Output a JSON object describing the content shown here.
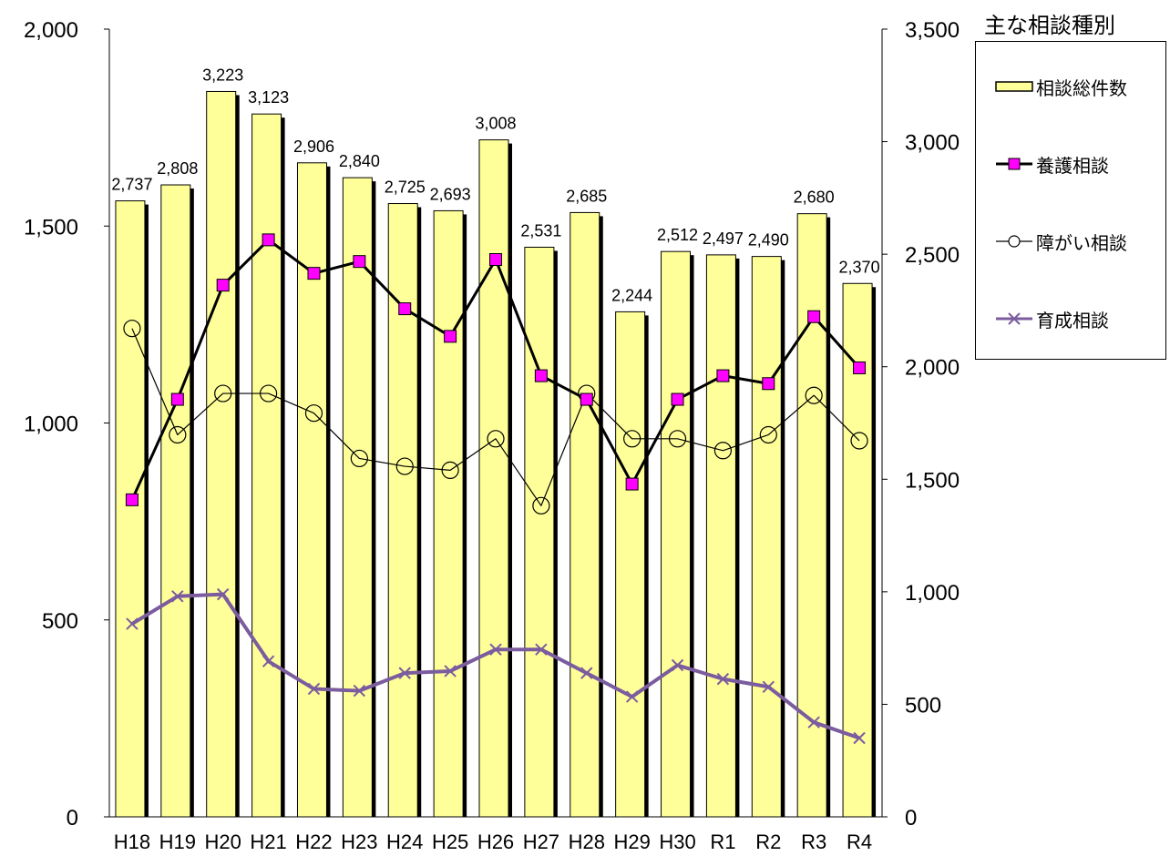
{
  "chart_data": {
    "type": "bar",
    "categories": [
      "H18",
      "H19",
      "H20",
      "H21",
      "H22",
      "H23",
      "H24",
      "H25",
      "H26",
      "H27",
      "H28",
      "H29",
      "H30",
      "R1",
      "R2",
      "R3",
      "R4"
    ],
    "left_axis": {
      "min": 0,
      "max": 2000,
      "ticks": [
        "0",
        "500",
        "1,000",
        "1,500",
        "2,000"
      ]
    },
    "right_axis": {
      "min": 0,
      "max": 3500,
      "ticks": [
        "0",
        "500",
        "1,000",
        "1,500",
        "2,000",
        "2,500",
        "3,000",
        "3,500"
      ]
    },
    "legend_title": "主な相談種別",
    "series": [
      {
        "name": "相談総件数",
        "kind": "bar",
        "axis": "right",
        "color": "#FFFF99",
        "values": [
          2737,
          2808,
          3223,
          3123,
          2906,
          2840,
          2725,
          2693,
          3008,
          2531,
          2685,
          2244,
          2512,
          2497,
          2490,
          2680,
          2370
        ],
        "labels": [
          "2,737",
          "2,808",
          "3,223",
          "3,123",
          "2,906",
          "2,840",
          "2,725",
          "2,693",
          "3,008",
          "2,531",
          "2,685",
          "2,244",
          "2,512",
          "2,497",
          "2,490",
          "2,680",
          "2,370"
        ]
      },
      {
        "name": "養護相談",
        "kind": "line",
        "marker": "square",
        "axis": "left",
        "color": "#000000",
        "marker_color": "#FF00FF",
        "values": [
          805,
          1060,
          1350,
          1465,
          1380,
          1410,
          1290,
          1220,
          1415,
          1120,
          1060,
          845,
          1060,
          1120,
          1100,
          1270,
          1140
        ]
      },
      {
        "name": "障がい相談",
        "kind": "line",
        "marker": "circle",
        "axis": "left",
        "color": "#000000",
        "values": [
          1240,
          970,
          1075,
          1075,
          1025,
          910,
          890,
          880,
          960,
          790,
          1075,
          960,
          960,
          930,
          970,
          1070,
          955
        ]
      },
      {
        "name": "育成相談",
        "kind": "line",
        "marker": "x",
        "axis": "left",
        "color": "#7B5C9E",
        "values": [
          490,
          560,
          565,
          395,
          325,
          320,
          365,
          370,
          425,
          425,
          365,
          305,
          385,
          350,
          330,
          240,
          200
        ]
      }
    ]
  }
}
